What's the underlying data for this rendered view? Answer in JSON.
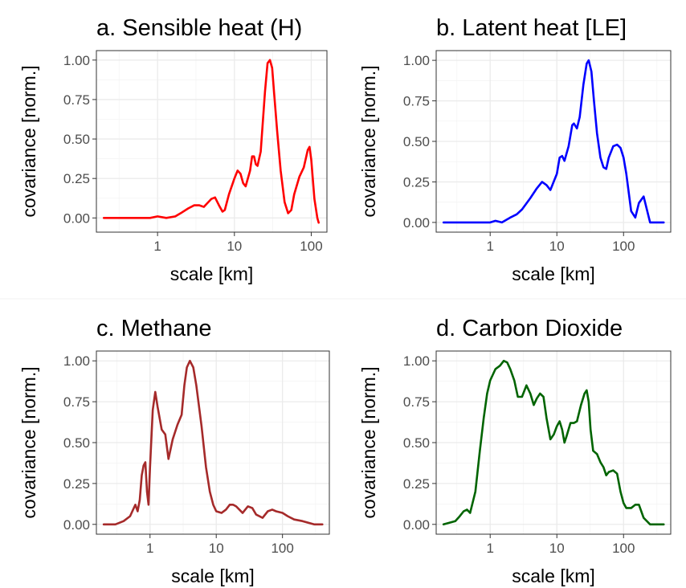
{
  "chart_data": [
    {
      "id": "a",
      "type": "line",
      "title": "a. Sensible heat (H)",
      "xlabel": "scale [km]",
      "ylabel": "covariance [norm.]",
      "x_scale": "log",
      "xlim": [
        0.16,
        160
      ],
      "ylim": [
        -0.09,
        1.06
      ],
      "x_ticks": [
        1,
        10,
        100
      ],
      "x_tick_labels": [
        "1",
        "10",
        "100"
      ],
      "y_ticks": [
        0,
        0.25,
        0.5,
        0.75,
        1
      ],
      "y_tick_labels": [
        "0.00",
        "0.25",
        "0.50",
        "0.75",
        "1.00"
      ],
      "grid": true,
      "color": "#ff0000",
      "series": [
        {
          "x": [
            0.2,
            0.5,
            0.8,
            1.0,
            1.3,
            1.7,
            2.0,
            2.5,
            3.0,
            3.5,
            4.0,
            5.0,
            5.6,
            6.3,
            7.0,
            7.5,
            8.5,
            10,
            11,
            12,
            13,
            14,
            16,
            17,
            18,
            19,
            20,
            22,
            25,
            27,
            29,
            31,
            33,
            36,
            40,
            45,
            50,
            55,
            60,
            70,
            80,
            90,
            95,
            100,
            110,
            120,
            125
          ],
          "y": [
            0,
            0,
            0,
            0.01,
            0.0,
            0.01,
            0.03,
            0.06,
            0.08,
            0.08,
            0.07,
            0.12,
            0.13,
            0.08,
            0.04,
            0.05,
            0.15,
            0.25,
            0.3,
            0.28,
            0.22,
            0.2,
            0.3,
            0.39,
            0.39,
            0.34,
            0.33,
            0.42,
            0.8,
            0.98,
            1.0,
            0.95,
            0.78,
            0.55,
            0.3,
            0.1,
            0.03,
            0.05,
            0.15,
            0.26,
            0.32,
            0.43,
            0.45,
            0.37,
            0.12,
            0.0,
            -0.03
          ]
        }
      ]
    },
    {
      "id": "b",
      "type": "line",
      "title": "b. Latent heat [LE]",
      "xlabel": "scale [km]",
      "ylabel": "covariance [norm.]",
      "x_scale": "log",
      "xlim": [
        0.155,
        510
      ],
      "ylim": [
        -0.06,
        1.06
      ],
      "x_ticks": [
        1,
        10,
        100
      ],
      "x_tick_labels": [
        "1",
        "10",
        "100"
      ],
      "y_ticks": [
        0,
        0.25,
        0.5,
        0.75,
        1
      ],
      "y_tick_labels": [
        "0.00",
        "0.25",
        "0.50",
        "0.75",
        "1.00"
      ],
      "grid": true,
      "color": "#0000ff",
      "series": [
        {
          "x": [
            0.2,
            0.5,
            0.8,
            1.0,
            1.2,
            1.5,
            2.0,
            2.5,
            3.0,
            4.0,
            5.0,
            6.0,
            7.0,
            8.0,
            10,
            11,
            12,
            13,
            15,
            17,
            18,
            20,
            22,
            25,
            28,
            30,
            33,
            36,
            40,
            45,
            50,
            55,
            60,
            70,
            80,
            90,
            100,
            110,
            120,
            130,
            150,
            170,
            200,
            250,
            400
          ],
          "y": [
            0,
            0,
            0,
            0.0,
            0.01,
            0.0,
            0.03,
            0.05,
            0.08,
            0.15,
            0.21,
            0.25,
            0.23,
            0.2,
            0.3,
            0.4,
            0.41,
            0.38,
            0.47,
            0.6,
            0.61,
            0.58,
            0.65,
            0.85,
            0.98,
            1.0,
            0.93,
            0.75,
            0.55,
            0.4,
            0.34,
            0.33,
            0.4,
            0.47,
            0.48,
            0.46,
            0.4,
            0.3,
            0.18,
            0.07,
            0.03,
            0.12,
            0.16,
            0.0,
            0
          ]
        }
      ]
    },
    {
      "id": "c",
      "type": "line",
      "title": "c. Methane",
      "xlabel": "scale [km]",
      "ylabel": "covariance [norm.]",
      "x_scale": "log",
      "xlim": [
        0.155,
        510
      ],
      "ylim": [
        -0.06,
        1.06
      ],
      "x_ticks": [
        1,
        10,
        100
      ],
      "x_tick_labels": [
        "1",
        "10",
        "100"
      ],
      "y_ticks": [
        0,
        0.25,
        0.5,
        0.75,
        1
      ],
      "y_tick_labels": [
        "0.00",
        "0.25",
        "0.50",
        "0.75",
        "1.00"
      ],
      "grid": true,
      "color": "#a52a2a",
      "series": [
        {
          "x": [
            0.2,
            0.3,
            0.4,
            0.5,
            0.6,
            0.65,
            0.7,
            0.75,
            0.8,
            0.85,
            0.9,
            0.95,
            1.0,
            1.1,
            1.2,
            1.3,
            1.5,
            1.7,
            1.9,
            2.2,
            2.6,
            3.0,
            3.3,
            3.6,
            4.0,
            4.5,
            5.0,
            6.0,
            7.0,
            8.0,
            9.0,
            10,
            12,
            14,
            16,
            18,
            20,
            25,
            30,
            35,
            40,
            50,
            60,
            70,
            80,
            100,
            120,
            150,
            200,
            300,
            400
          ],
          "y": [
            0,
            0,
            0.02,
            0.05,
            0.12,
            0.08,
            0.15,
            0.3,
            0.36,
            0.38,
            0.2,
            0.12,
            0.35,
            0.7,
            0.81,
            0.72,
            0.58,
            0.55,
            0.4,
            0.52,
            0.61,
            0.67,
            0.85,
            0.96,
            1.0,
            0.96,
            0.85,
            0.6,
            0.35,
            0.2,
            0.12,
            0.08,
            0.07,
            0.09,
            0.12,
            0.12,
            0.11,
            0.07,
            0.11,
            0.1,
            0.06,
            0.04,
            0.08,
            0.09,
            0.08,
            0.07,
            0.05,
            0.03,
            0.02,
            0,
            0
          ]
        }
      ]
    },
    {
      "id": "d",
      "type": "line",
      "title": "d. Carbon Dioxide",
      "xlabel": "scale [km]",
      "ylabel": "covariance [norm.]",
      "x_scale": "log",
      "xlim": [
        0.155,
        510
      ],
      "ylim": [
        -0.06,
        1.06
      ],
      "x_ticks": [
        1,
        10,
        100
      ],
      "x_tick_labels": [
        "1",
        "10",
        "100"
      ],
      "y_ticks": [
        0,
        0.25,
        0.5,
        0.75,
        1
      ],
      "y_tick_labels": [
        "0.00",
        "0.25",
        "0.50",
        "0.75",
        "1.00"
      ],
      "grid": true,
      "color": "#006400",
      "series": [
        {
          "x": [
            0.2,
            0.3,
            0.35,
            0.4,
            0.45,
            0.5,
            0.6,
            0.7,
            0.8,
            0.9,
            1.0,
            1.2,
            1.4,
            1.6,
            1.8,
            2.0,
            2.3,
            2.6,
            3.0,
            3.5,
            4.0,
            4.5,
            5.0,
            5.6,
            6.3,
            7.0,
            8.0,
            9.0,
            10,
            11,
            12,
            13,
            14,
            16,
            18,
            20,
            23,
            26,
            28,
            30,
            32,
            35,
            40,
            45,
            50,
            55,
            60,
            70,
            80,
            90,
            100,
            110,
            130,
            150,
            170,
            200,
            250,
            400
          ],
          "y": [
            0,
            0.02,
            0.05,
            0.08,
            0.09,
            0.07,
            0.2,
            0.45,
            0.65,
            0.8,
            0.88,
            0.95,
            0.97,
            1.0,
            0.99,
            0.95,
            0.88,
            0.78,
            0.78,
            0.85,
            0.8,
            0.73,
            0.77,
            0.8,
            0.78,
            0.65,
            0.52,
            0.55,
            0.6,
            0.63,
            0.58,
            0.5,
            0.54,
            0.62,
            0.62,
            0.63,
            0.73,
            0.8,
            0.82,
            0.75,
            0.58,
            0.45,
            0.43,
            0.38,
            0.35,
            0.3,
            0.32,
            0.33,
            0.31,
            0.2,
            0.13,
            0.1,
            0.1,
            0.12,
            0.12,
            0.04,
            0.0,
            0
          ]
        }
      ]
    }
  ]
}
